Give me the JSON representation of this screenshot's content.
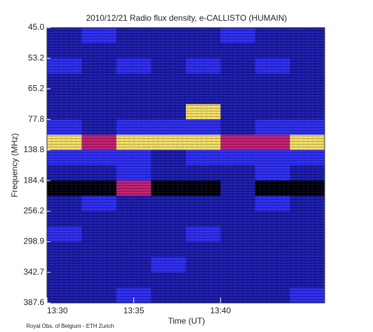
{
  "chart_data": {
    "type": "heatmap",
    "title": "2010/12/21  Radio flux density, e-CALLISTO (HUMAIN)",
    "xlabel": "Time (UT)",
    "ylabel": "Frequency (MHz)",
    "footer": "Royal Obs. of Belgium - ETH Zurich",
    "xlim": [
      "13:30",
      "13:46"
    ],
    "xticks": [
      "13:30",
      "13:35",
      "13:40"
    ],
    "ylabels": [
      "45.0",
      "53.2",
      "65.2",
      "77.8",
      "138.8",
      "184.4",
      "256.2",
      "298.9",
      "342.7",
      "387.6"
    ],
    "colormap": [
      "#000000",
      "#1c1ca8",
      "#2e2ef0",
      "#c8206a",
      "#ffe860"
    ],
    "values": [
      [
        1,
        2,
        1,
        1,
        1,
        2,
        1,
        1
      ],
      [
        1,
        1,
        1,
        1,
        1,
        1,
        1,
        1
      ],
      [
        2,
        1,
        2,
        1,
        2,
        1,
        2,
        1
      ],
      [
        1,
        1,
        1,
        1,
        1,
        1,
        1,
        1
      ],
      [
        1,
        1,
        1,
        1,
        1,
        1,
        1,
        1
      ],
      [
        1,
        1,
        1,
        1,
        4,
        1,
        1,
        1
      ],
      [
        2,
        1,
        2,
        2,
        2,
        1,
        2,
        2
      ],
      [
        4,
        3,
        4,
        4,
        4,
        3,
        3,
        4
      ],
      [
        2,
        2,
        2,
        1,
        2,
        2,
        2,
        2
      ],
      [
        1,
        1,
        2,
        1,
        1,
        1,
        2,
        1
      ],
      [
        0,
        0,
        3,
        0,
        0,
        1,
        0,
        0
      ],
      [
        1,
        2,
        1,
        1,
        1,
        1,
        2,
        1
      ],
      [
        1,
        1,
        1,
        1,
        1,
        1,
        1,
        1
      ],
      [
        2,
        1,
        1,
        1,
        2,
        1,
        1,
        1
      ],
      [
        1,
        1,
        1,
        1,
        1,
        1,
        1,
        1
      ],
      [
        1,
        1,
        1,
        2,
        1,
        1,
        1,
        1
      ],
      [
        1,
        1,
        1,
        1,
        1,
        1,
        1,
        1
      ],
      [
        1,
        1,
        2,
        1,
        1,
        1,
        1,
        2
      ]
    ]
  }
}
